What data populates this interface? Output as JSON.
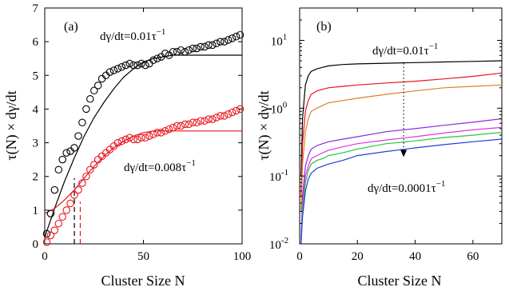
{
  "colors": {
    "black": "#000000",
    "red": "#e8141c",
    "orange": "#d9822b",
    "purple": "#8a2be2",
    "magenta": "#e034e0",
    "green": "#22c93a",
    "blue": "#1f3fd6"
  },
  "chart_data": [
    {
      "type": "scatter",
      "panel_label": "(a)",
      "xlabel": "Cluster Size N",
      "ylabel": "τ(N) × dγ/dt",
      "xlim": [
        0,
        100
      ],
      "ylim": [
        0,
        7
      ],
      "xticks": [
        0,
        50,
        100
      ],
      "yticks": [
        0,
        1,
        2,
        3,
        4,
        5,
        6,
        7
      ],
      "annotations": [
        {
          "text_base": "dγ/dt=0.01τ",
          "sup": "−1"
        },
        {
          "text_base": "dγ/dt=0.008τ",
          "sup": "−1"
        }
      ],
      "series": [
        {
          "color": "black",
          "marker": "circle",
          "x": [
            1,
            3,
            5,
            7,
            9,
            11,
            13,
            15,
            17,
            19,
            21,
            23,
            25,
            27,
            29,
            31,
            33,
            35,
            37,
            39,
            41,
            43,
            45,
            47,
            49,
            51,
            53,
            55,
            57,
            59,
            61,
            63,
            65,
            67,
            69,
            71,
            73,
            75,
            77,
            79,
            81,
            83,
            85,
            87,
            89,
            91,
            93,
            95,
            97,
            99
          ],
          "y": [
            0.3,
            0.9,
            1.6,
            2.2,
            2.5,
            2.7,
            2.75,
            2.85,
            3.2,
            3.6,
            4.0,
            4.3,
            4.55,
            4.7,
            4.9,
            5.0,
            5.1,
            5.15,
            5.2,
            5.25,
            5.3,
            5.35,
            5.3,
            5.3,
            5.35,
            5.3,
            5.35,
            5.45,
            5.5,
            5.55,
            5.65,
            5.6,
            5.7,
            5.7,
            5.75,
            5.7,
            5.75,
            5.8,
            5.8,
            5.85,
            5.85,
            5.9,
            5.9,
            5.95,
            6.0,
            6.0,
            6.05,
            6.1,
            6.15,
            6.2
          ]
        },
        {
          "color": "red",
          "marker": "circle",
          "x": [
            1,
            3,
            5,
            7,
            9,
            11,
            13,
            15,
            17,
            19,
            21,
            23,
            25,
            27,
            29,
            31,
            33,
            35,
            37,
            39,
            41,
            43,
            45,
            47,
            49,
            51,
            53,
            55,
            57,
            59,
            61,
            63,
            65,
            67,
            69,
            71,
            73,
            75,
            77,
            79,
            81,
            83,
            85,
            87,
            89,
            91,
            93,
            95,
            97,
            99
          ],
          "y": [
            0.05,
            0.25,
            0.4,
            0.6,
            0.8,
            1.0,
            1.2,
            1.45,
            1.6,
            1.8,
            2.0,
            2.2,
            2.35,
            2.5,
            2.6,
            2.7,
            2.8,
            2.9,
            3.0,
            3.05,
            3.1,
            3.15,
            3.1,
            3.1,
            3.15,
            3.15,
            3.2,
            3.25,
            3.3,
            3.3,
            3.35,
            3.4,
            3.45,
            3.5,
            3.5,
            3.55,
            3.55,
            3.6,
            3.6,
            3.65,
            3.65,
            3.7,
            3.7,
            3.75,
            3.8,
            3.8,
            3.85,
            3.9,
            3.95,
            4.0
          ]
        }
      ],
      "fits": [
        {
          "color": "black",
          "x": [
            0,
            5,
            10,
            15,
            20,
            25,
            30,
            35,
            40,
            45,
            50,
            55,
            60,
            65,
            70,
            80,
            90,
            100
          ],
          "y": [
            0.2,
            1.05,
            1.85,
            2.55,
            3.2,
            3.75,
            4.2,
            4.6,
            4.95,
            5.2,
            5.4,
            5.5,
            5.55,
            5.6,
            5.6,
            5.6,
            5.6,
            5.6
          ]
        },
        {
          "color": "red",
          "x": [
            0,
            5,
            10,
            15,
            20,
            25,
            30,
            35,
            40,
            45,
            50,
            55,
            60,
            70,
            80,
            90,
            100
          ],
          "y": [
            0.9,
            1.05,
            1.3,
            1.6,
            1.95,
            2.3,
            2.6,
            2.85,
            3.05,
            3.2,
            3.3,
            3.35,
            3.35,
            3.35,
            3.35,
            3.35,
            3.35
          ]
        }
      ],
      "markers": [
        {
          "color": "black",
          "x": 15,
          "y_top": 1.95
        },
        {
          "color": "red",
          "x": 18,
          "y_top": 1.25
        }
      ]
    },
    {
      "type": "line",
      "panel_label": "(b)",
      "xlabel": "Cluster Size N",
      "ylabel": "τ(N) × dγ/dt",
      "xlim": [
        0,
        70
      ],
      "ylim": [
        0.01,
        30
      ],
      "yscale": "log",
      "xticks": [
        0,
        20,
        40,
        60
      ],
      "yticks": [
        {
          "value": 0.01,
          "base": "10",
          "exp": "-2"
        },
        {
          "value": 0.1,
          "base": "10",
          "exp": "-1"
        },
        {
          "value": 1,
          "base": "10",
          "exp": "0"
        },
        {
          "value": 10,
          "base": "10",
          "exp": "1"
        }
      ],
      "annotations": [
        {
          "text_base": "dγ/dt=0.01τ",
          "sup": "−1"
        },
        {
          "text_base": "dγ/dt=0.0001τ",
          "sup": "−1"
        }
      ],
      "arrow": {
        "x": 36,
        "y_from": 4.6,
        "y_to": 0.19
      },
      "series": [
        {
          "color": "black",
          "x": [
            0.5,
            1,
            2,
            3,
            4,
            6,
            8,
            10,
            15,
            20,
            30,
            40,
            50,
            60,
            70
          ],
          "y": [
            0.1,
            0.7,
            2.2,
            3.0,
            3.5,
            3.8,
            4.0,
            4.2,
            4.4,
            4.5,
            4.6,
            4.7,
            4.8,
            4.9,
            5.0
          ]
        },
        {
          "color": "red",
          "x": [
            0.5,
            1,
            2,
            3,
            4,
            6,
            8,
            10,
            15,
            20,
            30,
            40,
            50,
            60,
            70
          ],
          "y": [
            0.05,
            0.3,
            0.9,
            1.3,
            1.6,
            1.8,
            1.9,
            2.0,
            2.1,
            2.2,
            2.35,
            2.5,
            2.7,
            2.95,
            3.3
          ]
        },
        {
          "color": "orange",
          "x": [
            0.5,
            1,
            2,
            3,
            4,
            6,
            8,
            10,
            15,
            20,
            30,
            40,
            50,
            60,
            70
          ],
          "y": [
            0.03,
            0.15,
            0.45,
            0.7,
            0.9,
            1.0,
            1.1,
            1.2,
            1.3,
            1.4,
            1.6,
            1.8,
            2.0,
            2.1,
            2.2
          ]
        },
        {
          "color": "purple",
          "x": [
            0.5,
            1,
            2,
            3,
            4,
            6,
            8,
            10,
            15,
            20,
            30,
            40,
            50,
            60,
            70
          ],
          "y": [
            0.012,
            0.05,
            0.14,
            0.2,
            0.25,
            0.28,
            0.3,
            0.32,
            0.35,
            0.38,
            0.45,
            0.5,
            0.56,
            0.62,
            0.7
          ]
        },
        {
          "color": "magenta",
          "x": [
            0.5,
            1,
            2,
            3,
            4,
            6,
            8,
            10,
            15,
            20,
            30,
            40,
            50,
            60,
            70
          ],
          "y": [
            0.011,
            0.04,
            0.1,
            0.14,
            0.18,
            0.2,
            0.22,
            0.24,
            0.27,
            0.3,
            0.34,
            0.38,
            0.43,
            0.48,
            0.52
          ]
        },
        {
          "color": "green",
          "x": [
            0.5,
            1,
            2,
            3,
            4,
            6,
            8,
            10,
            15,
            20,
            30,
            40,
            50,
            60,
            70
          ],
          "y": [
            0.01,
            0.03,
            0.08,
            0.12,
            0.15,
            0.17,
            0.18,
            0.2,
            0.22,
            0.25,
            0.3,
            0.33,
            0.37,
            0.4,
            0.44
          ]
        },
        {
          "color": "blue",
          "x": [
            0.5,
            1,
            2,
            3,
            4,
            6,
            8,
            10,
            15,
            20,
            30,
            40,
            50,
            60,
            70
          ],
          "y": [
            0.01,
            0.025,
            0.06,
            0.09,
            0.11,
            0.13,
            0.14,
            0.15,
            0.17,
            0.2,
            0.23,
            0.26,
            0.29,
            0.32,
            0.35
          ]
        }
      ]
    }
  ]
}
